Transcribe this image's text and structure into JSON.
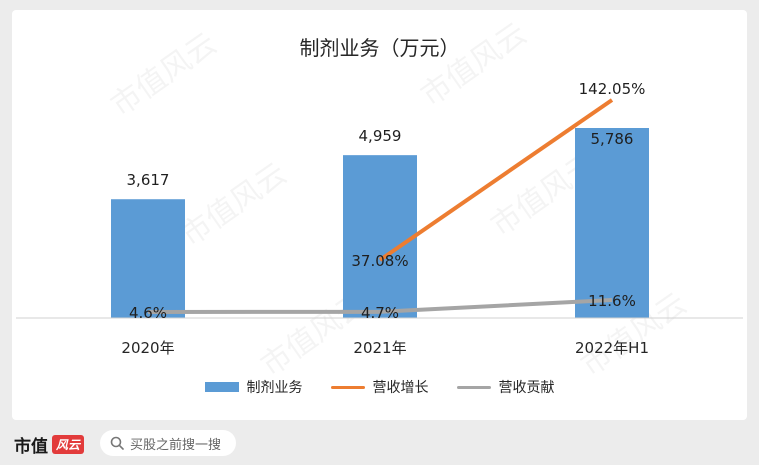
{
  "chart_data": {
    "type": "bar+line",
    "title": "制剂业务（万元）",
    "categories": [
      "2020年",
      "2021年",
      "2022年H1"
    ],
    "bars": {
      "name": "制剂业务",
      "values": [
        3617,
        4959,
        5786
      ],
      "labels": [
        "3,617",
        "4,959",
        "5,786"
      ],
      "color": "#5b9bd5"
    },
    "lines": [
      {
        "name": "营收增长",
        "values": [
          null,
          37.08,
          142.05
        ],
        "labels": [
          "",
          "37.08%",
          "142.05%"
        ],
        "color": "#ed7d31"
      },
      {
        "name": "营收贡献",
        "values": [
          4.6,
          4.7,
          11.6
        ],
        "labels": [
          "4.6%",
          "4.7%",
          "11.6%"
        ],
        "color": "#a5a5a5"
      }
    ],
    "legend_position": "bottom",
    "grid": false
  },
  "watermark_text": "市值风云",
  "footer": {
    "brand": "市值",
    "brand_badge": "风云",
    "search_placeholder": "买股之前搜一搜"
  }
}
